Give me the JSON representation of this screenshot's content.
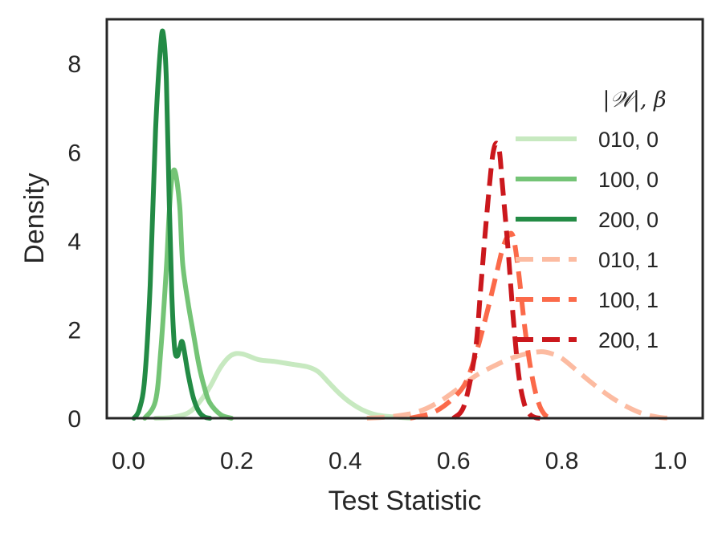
{
  "chart_data": {
    "type": "line",
    "subtype": "kde-density",
    "xlabel": "Test Statistic",
    "ylabel": "Density",
    "xlim": [
      -0.04,
      1.06
    ],
    "ylim": [
      0,
      9.0
    ],
    "xticks": [
      "0.0",
      "0.2",
      "0.4",
      "0.6",
      "0.8",
      "1.0"
    ],
    "yticks": [
      "0",
      "2",
      "4",
      "6",
      "8"
    ],
    "grid": false,
    "legend_title": "|𝒲|, β",
    "legend_position": "right",
    "series": [
      {
        "name": "010, 0",
        "color": "#c7e9c0",
        "style": "solid",
        "x": [
          0.05,
          0.08,
          0.11,
          0.13,
          0.15,
          0.17,
          0.19,
          0.21,
          0.24,
          0.27,
          0.3,
          0.33,
          0.35,
          0.37,
          0.39,
          0.41,
          0.43,
          0.45,
          0.47,
          0.5,
          0.52
        ],
        "y": [
          0,
          0.02,
          0.12,
          0.35,
          0.7,
          1.15,
          1.42,
          1.45,
          1.32,
          1.28,
          1.22,
          1.16,
          1.05,
          0.8,
          0.55,
          0.35,
          0.2,
          0.1,
          0.05,
          0.02,
          0
        ]
      },
      {
        "name": "100, 0",
        "color": "#74c476",
        "style": "solid",
        "x": [
          0.03,
          0.05,
          0.06,
          0.07,
          0.075,
          0.08,
          0.085,
          0.09,
          0.095,
          0.1,
          0.11,
          0.12,
          0.13,
          0.14,
          0.15,
          0.17,
          0.19
        ],
        "y": [
          0,
          0.4,
          1.6,
          3.4,
          4.6,
          5.4,
          5.6,
          5.3,
          4.7,
          3.5,
          2.6,
          1.9,
          1.2,
          0.7,
          0.35,
          0.08,
          0
        ]
      },
      {
        "name": "200, 0",
        "color": "#238b45",
        "style": "solid",
        "x": [
          0.01,
          0.02,
          0.03,
          0.04,
          0.05,
          0.06,
          0.065,
          0.07,
          0.075,
          0.08,
          0.085,
          0.09,
          0.095,
          0.1,
          0.11,
          0.12,
          0.13,
          0.14,
          0.15
        ],
        "y": [
          0,
          0.2,
          0.9,
          3.0,
          6.5,
          8.5,
          8.6,
          7.6,
          5.0,
          2.8,
          1.6,
          1.4,
          1.6,
          1.7,
          1.0,
          0.45,
          0.15,
          0.03,
          0
        ]
      },
      {
        "name": "010, 1",
        "color": "#fcbba1",
        "style": "dashed",
        "x": [
          0.44,
          0.48,
          0.52,
          0.55,
          0.58,
          0.61,
          0.64,
          0.67,
          0.7,
          0.73,
          0.76,
          0.78,
          0.8,
          0.83,
          0.86,
          0.89,
          0.92,
          0.95,
          0.98,
          1.0
        ],
        "y": [
          0,
          0.03,
          0.1,
          0.22,
          0.42,
          0.68,
          0.95,
          1.15,
          1.32,
          1.44,
          1.5,
          1.46,
          1.35,
          1.05,
          0.75,
          0.48,
          0.26,
          0.1,
          0.02,
          0
        ]
      },
      {
        "name": "100, 1",
        "color": "#fb6a4a",
        "style": "dashed",
        "x": [
          0.52,
          0.56,
          0.59,
          0.62,
          0.64,
          0.66,
          0.68,
          0.69,
          0.7,
          0.71,
          0.72,
          0.73,
          0.74,
          0.75,
          0.76,
          0.77,
          0.78
        ],
        "y": [
          0,
          0.12,
          0.35,
          0.75,
          1.4,
          2.3,
          3.3,
          3.8,
          4.1,
          4.1,
          3.3,
          2.2,
          1.3,
          0.65,
          0.25,
          0.06,
          0
        ]
      },
      {
        "name": "200, 1",
        "color": "#cb181d",
        "style": "dashed",
        "x": [
          0.6,
          0.62,
          0.64,
          0.65,
          0.66,
          0.67,
          0.675,
          0.68,
          0.685,
          0.69,
          0.7,
          0.71,
          0.72,
          0.73,
          0.74,
          0.75,
          0.76
        ],
        "y": [
          0,
          0.3,
          1.5,
          2.9,
          4.4,
          5.7,
          6.1,
          6.2,
          6.0,
          5.3,
          3.9,
          2.3,
          1.0,
          0.35,
          0.1,
          0.02,
          0
        ]
      }
    ]
  }
}
